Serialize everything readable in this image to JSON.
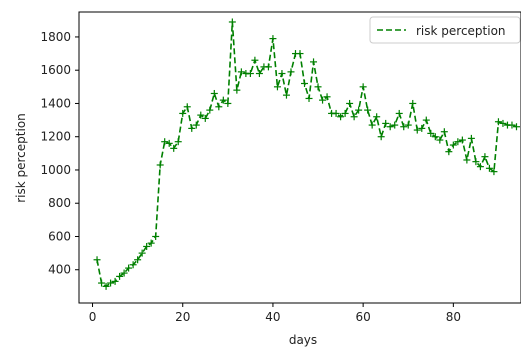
{
  "chart_data": {
    "type": "line",
    "title": "",
    "xlabel": "days",
    "ylabel": "risk perception",
    "xlim": [
      -3,
      95
    ],
    "ylim": [
      200,
      1950
    ],
    "xticks": [
      0,
      20,
      40,
      60,
      80
    ],
    "yticks": [
      400,
      600,
      800,
      1000,
      1200,
      1400,
      1600,
      1800
    ],
    "grid": false,
    "legend": {
      "position": "top-right"
    },
    "series": [
      {
        "name": "risk perception",
        "color": "#008000",
        "line_style": "dashed",
        "marker": "+",
        "x": [
          1,
          2,
          3,
          4,
          5,
          6,
          7,
          8,
          9,
          10,
          11,
          12,
          13,
          14,
          15,
          16,
          17,
          18,
          19,
          20,
          21,
          22,
          23,
          24,
          25,
          26,
          27,
          28,
          29,
          30,
          31,
          32,
          33,
          34,
          35,
          36,
          37,
          38,
          39,
          40,
          41,
          42,
          43,
          44,
          45,
          46,
          47,
          48,
          49,
          50,
          51,
          52,
          53,
          54,
          55,
          56,
          57,
          58,
          59,
          60,
          61,
          62,
          63,
          64,
          65,
          66,
          67,
          68,
          69,
          70,
          71,
          72,
          73,
          74,
          75,
          76,
          77,
          78,
          79,
          80,
          81,
          82,
          83,
          84,
          85,
          86,
          87,
          88,
          89,
          90,
          91,
          92,
          93,
          94
        ],
        "y": [
          460,
          320,
          300,
          320,
          330,
          360,
          380,
          410,
          430,
          460,
          500,
          540,
          560,
          600,
          1030,
          1170,
          1160,
          1130,
          1170,
          1340,
          1380,
          1250,
          1270,
          1330,
          1310,
          1360,
          1460,
          1380,
          1420,
          1400,
          1890,
          1480,
          1590,
          1580,
          1580,
          1660,
          1580,
          1620,
          1620,
          1790,
          1500,
          1580,
          1450,
          1590,
          1700,
          1700,
          1520,
          1430,
          1650,
          1500,
          1420,
          1440,
          1340,
          1340,
          1320,
          1340,
          1400,
          1320,
          1360,
          1500,
          1360,
          1270,
          1320,
          1200,
          1280,
          1260,
          1270,
          1340,
          1260,
          1270,
          1400,
          1240,
          1250,
          1300,
          1220,
          1200,
          1180,
          1230,
          1110,
          1150,
          1170,
          1180,
          1060,
          1190,
          1050,
          1020,
          1080,
          1010,
          990,
          1290,
          1280,
          1270,
          1270,
          1260
        ]
      }
    ]
  }
}
